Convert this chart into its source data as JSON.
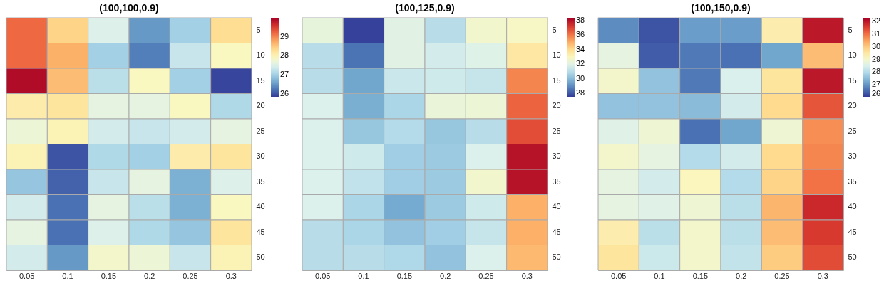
{
  "chart_data": [
    {
      "type": "heatmap",
      "title": "(100,100,0.9)",
      "categories": [
        "0.05",
        "0.1",
        "0.15",
        "0.2",
        "0.25",
        "0.3"
      ],
      "y_categories": [
        "5",
        "10",
        "15",
        "20",
        "25",
        "30",
        "35",
        "40",
        "45",
        "50"
      ],
      "clim": [
        25.8,
        30
      ],
      "cticks": [
        26,
        27,
        28,
        29
      ],
      "cells": [
        [
          29.2,
          28.4,
          27.5,
          26.5,
          27.0,
          28.3
        ],
        [
          29.2,
          28.7,
          27.0,
          26.3,
          27.3,
          27.9
        ],
        [
          29.9,
          28.6,
          27.2,
          27.9,
          27.0,
          25.9
        ],
        [
          28.1,
          28.2,
          27.6,
          27.6,
          27.9,
          27.1
        ],
        [
          27.7,
          28.0,
          27.4,
          27.3,
          27.4,
          27.6
        ],
        [
          28.0,
          26.0,
          27.1,
          27.0,
          28.1,
          28.2
        ],
        [
          26.9,
          26.1,
          27.3,
          27.6,
          26.7,
          27.5
        ],
        [
          27.4,
          26.2,
          27.6,
          27.2,
          26.7,
          27.9
        ],
        [
          27.6,
          26.2,
          27.5,
          27.1,
          26.9,
          28.2
        ],
        [
          27.4,
          26.5,
          27.8,
          27.7,
          27.3,
          28.0
        ]
      ]
    },
    {
      "type": "heatmap",
      "title": "(100,125,0.9)",
      "categories": [
        "0.05",
        "0.1",
        "0.15",
        "0.2",
        "0.25",
        "0.3"
      ],
      "y_categories": [
        "5",
        "10",
        "15",
        "20",
        "25",
        "30",
        "35",
        "40",
        "45",
        "50"
      ],
      "clim": [
        27.4,
        38.4
      ],
      "cticks": [
        28,
        30,
        32,
        34,
        36,
        38
      ],
      "cells": [
        [
          32.2,
          27.6,
          32.0,
          31.0,
          32.6,
          32.8
        ],
        [
          31.0,
          28.5,
          32.0,
          31.6,
          31.9,
          33.6
        ],
        [
          31.0,
          29.5,
          31.4,
          31.5,
          31.3,
          35.8
        ],
        [
          31.8,
          29.7,
          30.7,
          32.3,
          32.4,
          36.4
        ],
        [
          31.8,
          30.3,
          30.9,
          30.3,
          31.0,
          36.8
        ],
        [
          31.8,
          31.5,
          30.5,
          30.4,
          31.8,
          38.0
        ],
        [
          31.8,
          31.2,
          30.5,
          30.4,
          32.6,
          38.0
        ],
        [
          31.8,
          30.7,
          29.6,
          30.4,
          31.5,
          35.0
        ],
        [
          31.0,
          30.7,
          30.2,
          30.5,
          31.3,
          35.0
        ],
        [
          31.0,
          31.0,
          30.8,
          30.2,
          31.8,
          34.8
        ]
      ]
    },
    {
      "type": "heatmap",
      "title": "(100,150,0.9)",
      "categories": [
        "0.05",
        "0.1",
        "0.15",
        "0.2",
        "0.25",
        "0.3"
      ],
      "y_categories": [
        "5",
        "10",
        "15",
        "20",
        "25",
        "30",
        "35",
        "40",
        "45",
        "50"
      ],
      "clim": [
        26,
        32.3
      ],
      "cticks": [
        26,
        27,
        28,
        29,
        30,
        31,
        32
      ],
      "cells": [
        [
          26.9,
          26.3,
          27.1,
          27.1,
          29.4,
          32.0
        ],
        [
          28.7,
          26.4,
          26.7,
          26.6,
          27.2,
          30.2
        ],
        [
          29.0,
          27.6,
          26.7,
          28.5,
          29.6,
          32.0
        ],
        [
          27.6,
          27.6,
          27.5,
          28.4,
          29.8,
          31.3
        ],
        [
          28.6,
          28.9,
          26.6,
          27.2,
          28.9,
          30.7
        ],
        [
          29.0,
          28.7,
          28.0,
          28.4,
          29.8,
          30.8
        ],
        [
          28.7,
          28.4,
          29.2,
          28.0,
          29.9,
          31.0
        ],
        [
          28.7,
          28.6,
          28.9,
          28.1,
          30.3,
          31.8
        ],
        [
          29.4,
          28.1,
          29.0,
          28.1,
          30.2,
          31.6
        ],
        [
          29.6,
          28.3,
          29.0,
          28.2,
          30.0,
          31.4
        ]
      ]
    }
  ]
}
